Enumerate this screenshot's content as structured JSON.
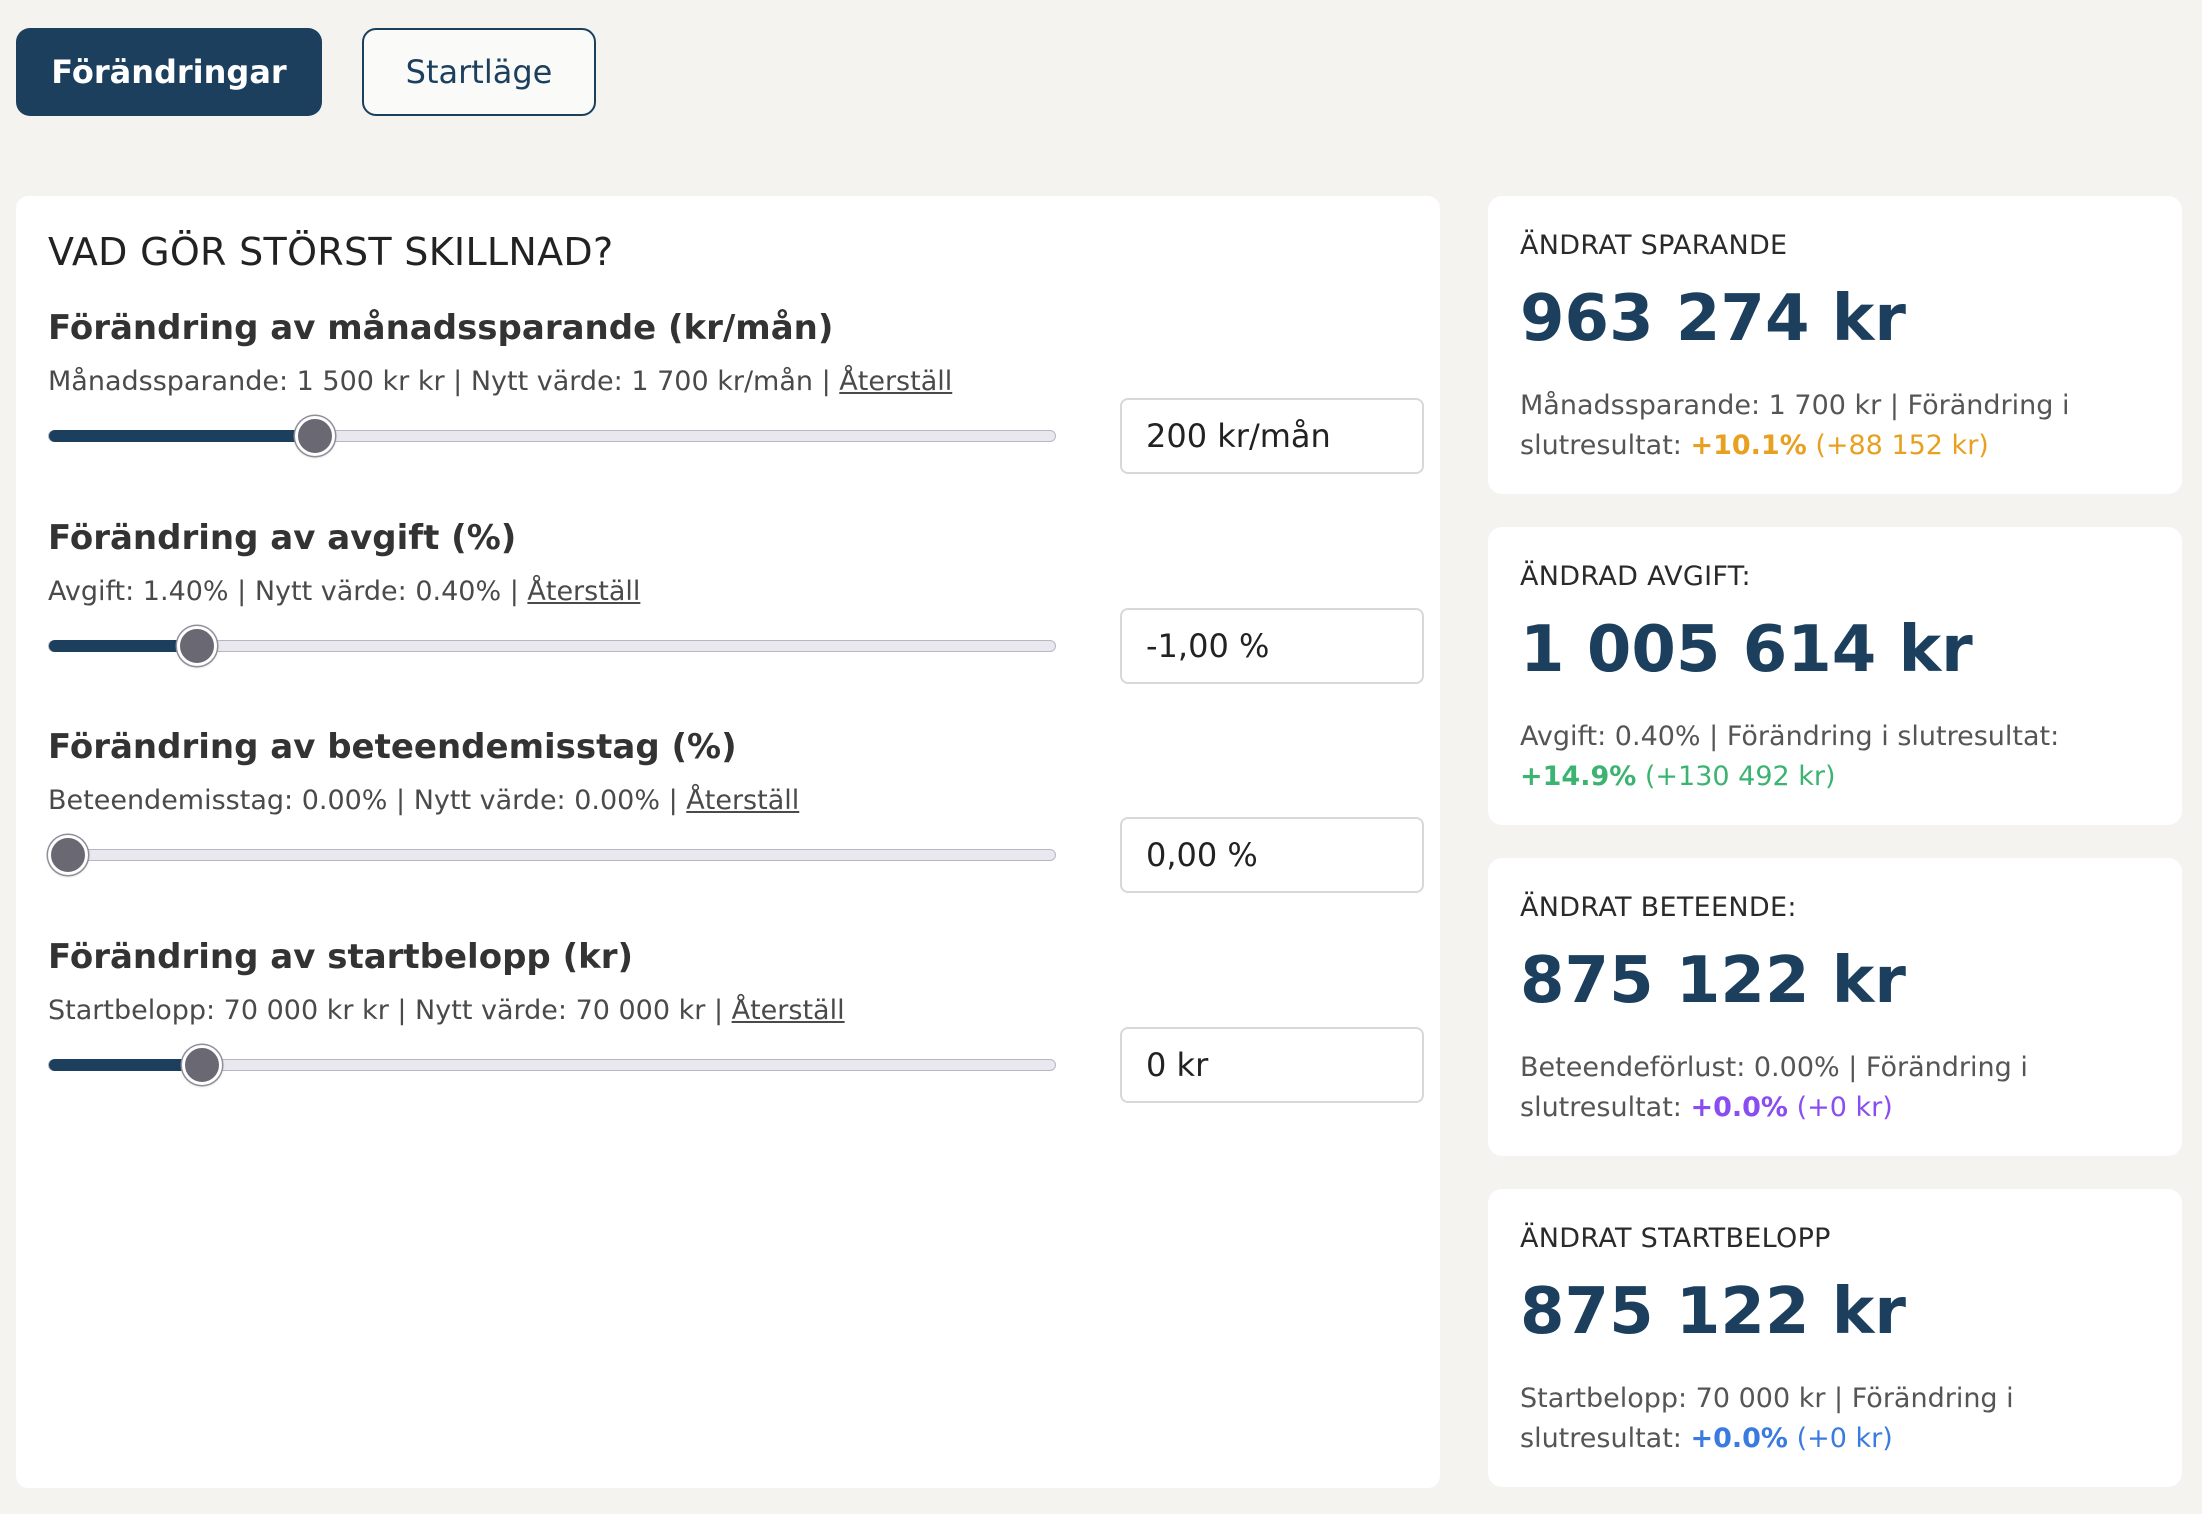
{
  "tabs": [
    {
      "label": "Förändringar",
      "active": true
    },
    {
      "label": "Startläge",
      "active": false
    }
  ],
  "panel": {
    "title": "VAD GÖR STÖRST SKILLNAD?",
    "rows": [
      {
        "title": "Förändring av månadssparande (kr/mån)",
        "sub": "Månadssparande: 1 500 kr kr | Nytt värde: 1 700 kr/mån | ",
        "reset": "Återställ",
        "value": "200 kr/mån",
        "slider_fraction": 0.255
      },
      {
        "title": "Förändring av avgift (%)",
        "sub": "Avgift: 1.40% | Nytt värde: 0.40% | ",
        "reset": "Återställ",
        "value": "-1,00 %",
        "slider_fraction": 0.133
      },
      {
        "title": "Förändring av beteendemisstag (%)",
        "sub": "Beteendemisstag: 0.00% | Nytt värde: 0.00% | ",
        "reset": "Återställ",
        "value": "0,00 %",
        "slider_fraction": 0.0
      },
      {
        "title": "Förändring av startbelopp (kr)",
        "sub": "Startbelopp: 70 000 kr kr | Nytt värde: 70 000 kr | ",
        "reset": "Återställ",
        "value": "0 kr",
        "slider_fraction": 0.138
      }
    ]
  },
  "cards": [
    {
      "label": "ÄNDRAT SPARANDE",
      "value": "963 274 kr",
      "desc": "Månadssparande: 1 700 kr | Förändring i slutresultat: ",
      "pct": "+10.1%",
      "diff": " (+88 152 kr)",
      "color": "#e8a020"
    },
    {
      "label": "ÄNDRAD AVGIFT:",
      "value": "1 005 614 kr",
      "desc": "Avgift: 0.40% | Förändring i slutresultat: ",
      "pct": "+14.9%",
      "diff": " (+130 492 kr)",
      "color": "#3cb371"
    },
    {
      "label": "ÄNDRAT BETEENDE:",
      "value": "875 122 kr",
      "desc": "Beteendeförlust: 0.00% | Förändring i slutresultat: ",
      "pct": "+0.0%",
      "diff": " (+0 kr)",
      "color": "#8a4df0"
    },
    {
      "label": "ÄNDRAT STARTBELOPP",
      "value": "875 122 kr",
      "desc": "Startbelopp: 70 000 kr | Förändring i slutresultat: ",
      "pct": "+0.0%",
      "diff": " (+0 kr)",
      "color": "#3b7be0"
    }
  ]
}
